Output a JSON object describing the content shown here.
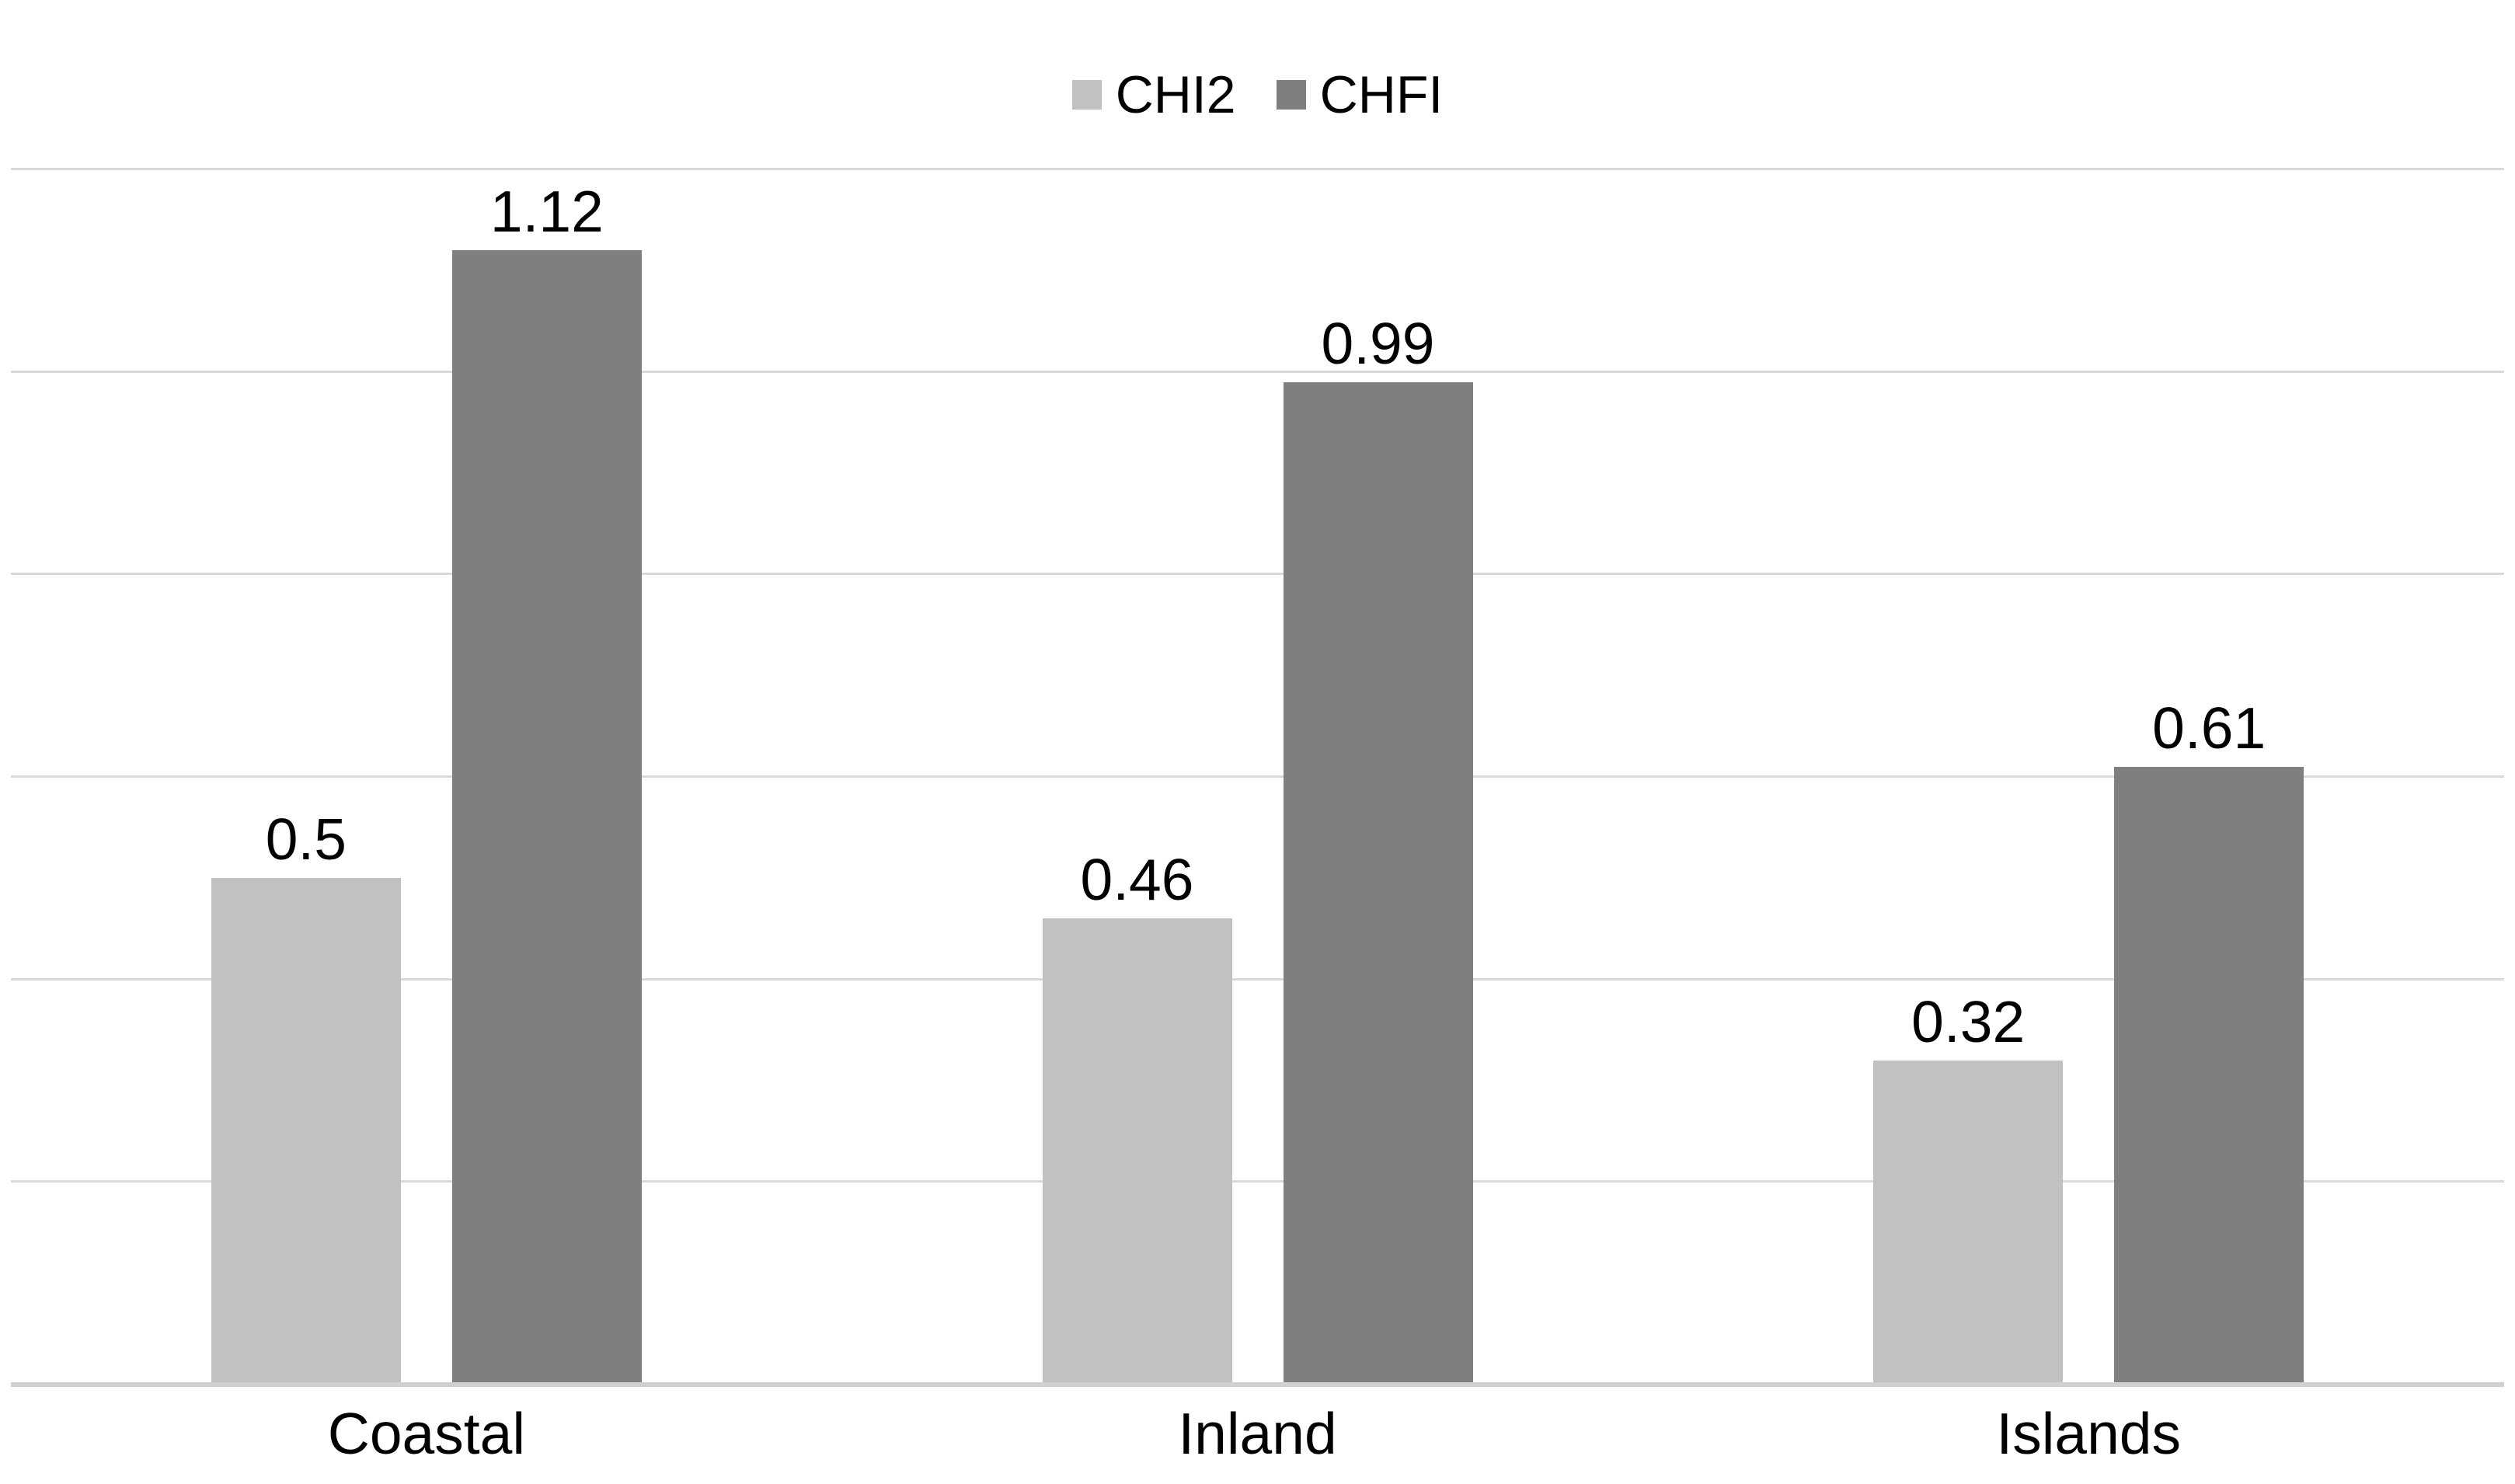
{
  "chart_data": {
    "type": "bar",
    "categories": [
      "Coastal",
      "Inland",
      "Islands"
    ],
    "series": [
      {
        "name": "CHI2",
        "color": "#c1c1c1",
        "values": [
          0.5,
          0.46,
          0.32
        ]
      },
      {
        "name": "CHFI",
        "color": "#7f7f7f",
        "values": [
          1.12,
          0.99,
          0.61
        ]
      }
    ],
    "title": "",
    "xlabel": "",
    "ylabel": "",
    "ylim": [
      0,
      1.2
    ],
    "gridline_step": 0.2,
    "grid": true,
    "legend_position": "top-center",
    "y_axis_tick_labels_visible": false,
    "value_labels": [
      [
        "0.5",
        "0.46",
        "0.32"
      ],
      [
        "1.12",
        "0.99",
        "0.61"
      ]
    ]
  },
  "colors": {
    "background": "#ffffff",
    "gridline": "#d9d9d9",
    "axis_line": "#d0d0d0",
    "text": "#000000"
  }
}
